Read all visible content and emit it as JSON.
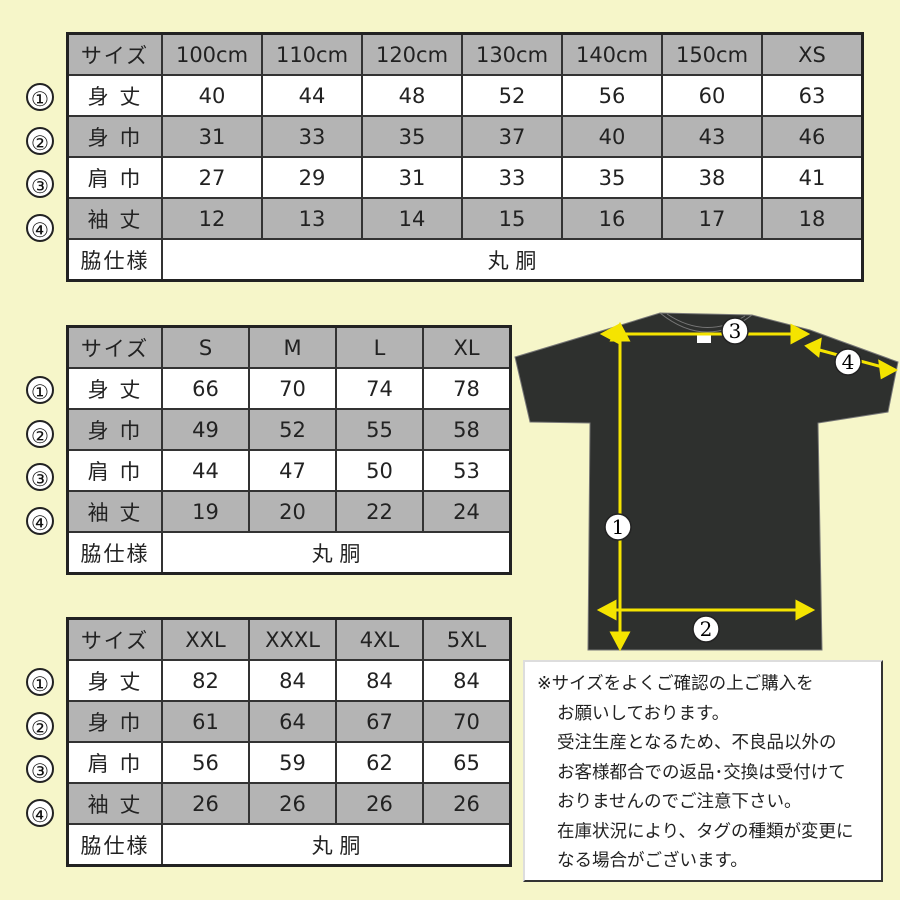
{
  "row_markers": [
    "①",
    "②",
    "③",
    "④"
  ],
  "row_labels": [
    "身 丈",
    "身 巾",
    "肩 巾",
    "袖 丈"
  ],
  "header_label": "サイズ",
  "side_label": "脇仕様",
  "side_value": "丸 胴",
  "tables": [
    {
      "sizes": [
        "100cm",
        "110cm",
        "120cm",
        "130cm",
        "140cm",
        "150cm",
        "XS"
      ],
      "rows": [
        [
          40,
          44,
          48,
          52,
          56,
          60,
          63
        ],
        [
          31,
          33,
          35,
          37,
          40,
          43,
          46
        ],
        [
          27,
          29,
          31,
          33,
          35,
          38,
          41
        ],
        [
          12,
          13,
          14,
          15,
          16,
          17,
          18
        ]
      ]
    },
    {
      "sizes": [
        "S",
        "M",
        "L",
        "XL"
      ],
      "rows": [
        [
          66,
          70,
          74,
          78
        ],
        [
          49,
          52,
          55,
          58
        ],
        [
          44,
          47,
          50,
          53
        ],
        [
          19,
          20,
          22,
          24
        ]
      ]
    },
    {
      "sizes": [
        "XXL",
        "XXXL",
        "4XL",
        "5XL"
      ],
      "rows": [
        [
          82,
          84,
          84,
          84
        ],
        [
          61,
          64,
          67,
          70
        ],
        [
          56,
          59,
          62,
          65
        ],
        [
          26,
          26,
          26,
          26
        ]
      ]
    }
  ],
  "diagram_markers": [
    "1",
    "2",
    "3",
    "4"
  ],
  "notes": [
    "※サイズをよくご確認の上ご購入を",
    "お願いしております。",
    "受注生産となるため、不良品以外の",
    "お客様都合での返品･交換は受付けて",
    "おりませんのでご注意下さい。",
    "在庫状況により、タグの種類が変更に",
    "なる場合がございます。"
  ],
  "colors": {
    "background": "#f6f6c9",
    "gray_row": "#b4b4b4",
    "shirt": "#2e302e",
    "arrow": "#f5e400"
  }
}
